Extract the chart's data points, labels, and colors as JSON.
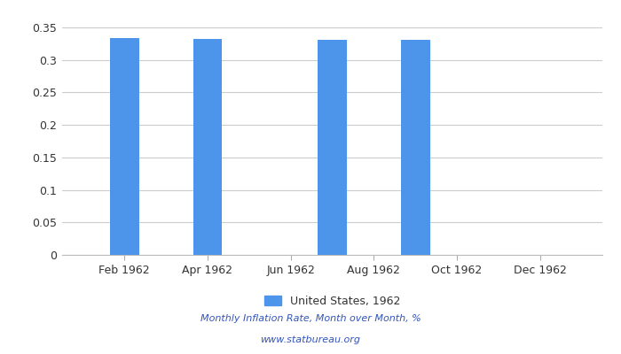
{
  "months_count": 12,
  "bar_positions": [
    1,
    3,
    6,
    8
  ],
  "bar_values": [
    0.334,
    0.332,
    0.331,
    0.331
  ],
  "bar_color": "#4d94eb",
  "xtick_positions": [
    1,
    3,
    5,
    7,
    9,
    11
  ],
  "xtick_labels": [
    "Feb 1962",
    "Apr 1962",
    "Jun 1962",
    "Aug 1962",
    "Oct 1962",
    "Dec 1962"
  ],
  "ytick_positions": [
    0,
    0.05,
    0.1,
    0.15,
    0.2,
    0.25,
    0.3,
    0.35
  ],
  "ytick_labels": [
    "0",
    "0.05",
    "0.1",
    "0.15",
    "0.2",
    "0.25",
    "0.3",
    "0.35"
  ],
  "ylim": [
    0,
    0.365
  ],
  "xlim": [
    -0.5,
    12.5
  ],
  "legend_label": "United States, 1962",
  "footer_line1": "Monthly Inflation Rate, Month over Month, %",
  "footer_line2": "www.statbureau.org",
  "grid_color": "#cccccc",
  "bar_width": 0.7,
  "bar_color_hex": "#4d94eb",
  "tick_label_color": "#333333",
  "footer_color": "#3355bb",
  "legend_fontsize": 9,
  "tick_fontsize": 9,
  "footer_fontsize": 8
}
